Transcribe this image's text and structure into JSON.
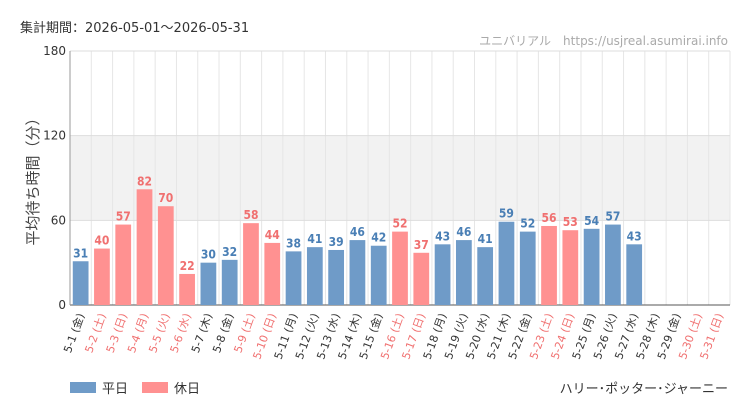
{
  "header": {
    "period_label": "集計期間：2026-05-01～2026-05-31",
    "brand": "ユニバリアル　https://usjreal.asumirai.info"
  },
  "footer": {
    "attraction": "ハリー･ポッター･ジャーニー"
  },
  "legend": [
    {
      "label": "平日",
      "color": "#6f9bc8"
    },
    {
      "label": "休日",
      "color": "#ff9191"
    }
  ],
  "colors": {
    "weekday": "#6f9bc8",
    "holiday": "#ff9191",
    "weekday_text": "#4a7fb5",
    "holiday_text": "#f07070",
    "band": "#f2f2f2"
  },
  "chart_data": {
    "type": "bar",
    "ylabel": "平均待ち時間（分）",
    "ylim": [
      0,
      180
    ],
    "yticks": [
      0,
      60,
      120,
      180
    ],
    "grid": true,
    "legend_position": "bottom-left",
    "shaded_band": [
      60,
      120
    ],
    "categories": [
      "5-1 (金)",
      "5-2 (土)",
      "5-3 (日)",
      "5-4 (月)",
      "5-5 (火)",
      "5-6 (水)",
      "5-7 (木)",
      "5-8 (金)",
      "5-9 (土)",
      "5-10 (日)",
      "5-11 (月)",
      "5-12 (火)",
      "5-13 (水)",
      "5-14 (木)",
      "5-15 (金)",
      "5-16 (土)",
      "5-17 (日)",
      "5-18 (月)",
      "5-19 (火)",
      "5-20 (水)",
      "5-21 (木)",
      "5-22 (金)",
      "5-23 (土)",
      "5-24 (日)",
      "5-25 (月)",
      "5-26 (火)",
      "5-27 (水)",
      "5-28 (木)",
      "5-29 (金)",
      "5-30 (土)",
      "5-31 (日)"
    ],
    "values": [
      31,
      40,
      57,
      82,
      70,
      22,
      30,
      32,
      58,
      44,
      38,
      41,
      39,
      46,
      42,
      52,
      37,
      43,
      46,
      41,
      59,
      52,
      56,
      53,
      54,
      57,
      43,
      null,
      null,
      null,
      null
    ],
    "day_type": [
      "平日",
      "休日",
      "休日",
      "休日",
      "休日",
      "休日",
      "平日",
      "平日",
      "休日",
      "休日",
      "平日",
      "平日",
      "平日",
      "平日",
      "平日",
      "休日",
      "休日",
      "平日",
      "平日",
      "平日",
      "平日",
      "平日",
      "休日",
      "休日",
      "平日",
      "平日",
      "平日",
      "平日",
      "平日",
      "休日",
      "休日"
    ]
  }
}
